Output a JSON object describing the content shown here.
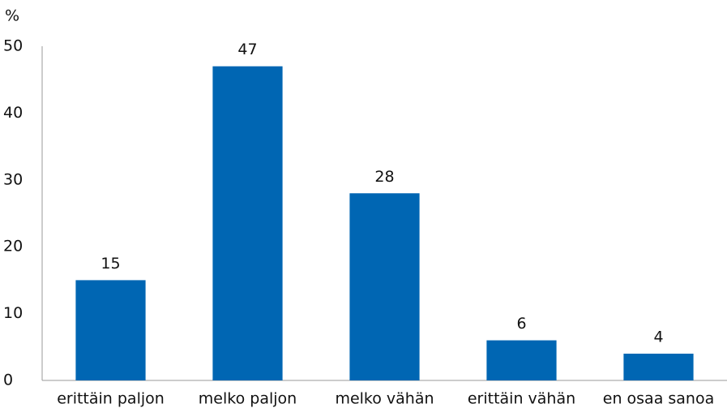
{
  "chart_data": {
    "type": "bar",
    "y_label": "%",
    "categories": [
      "erittäin paljon",
      "melko paljon",
      "melko vähän",
      "erittäin vähän",
      "en osaa sanoa"
    ],
    "values": [
      15,
      47,
      28,
      6,
      4
    ],
    "color": "#0066b3",
    "ylim": [
      0,
      50
    ],
    "yticks": [
      0,
      10,
      20,
      30,
      40,
      50
    ],
    "grid": false
  }
}
